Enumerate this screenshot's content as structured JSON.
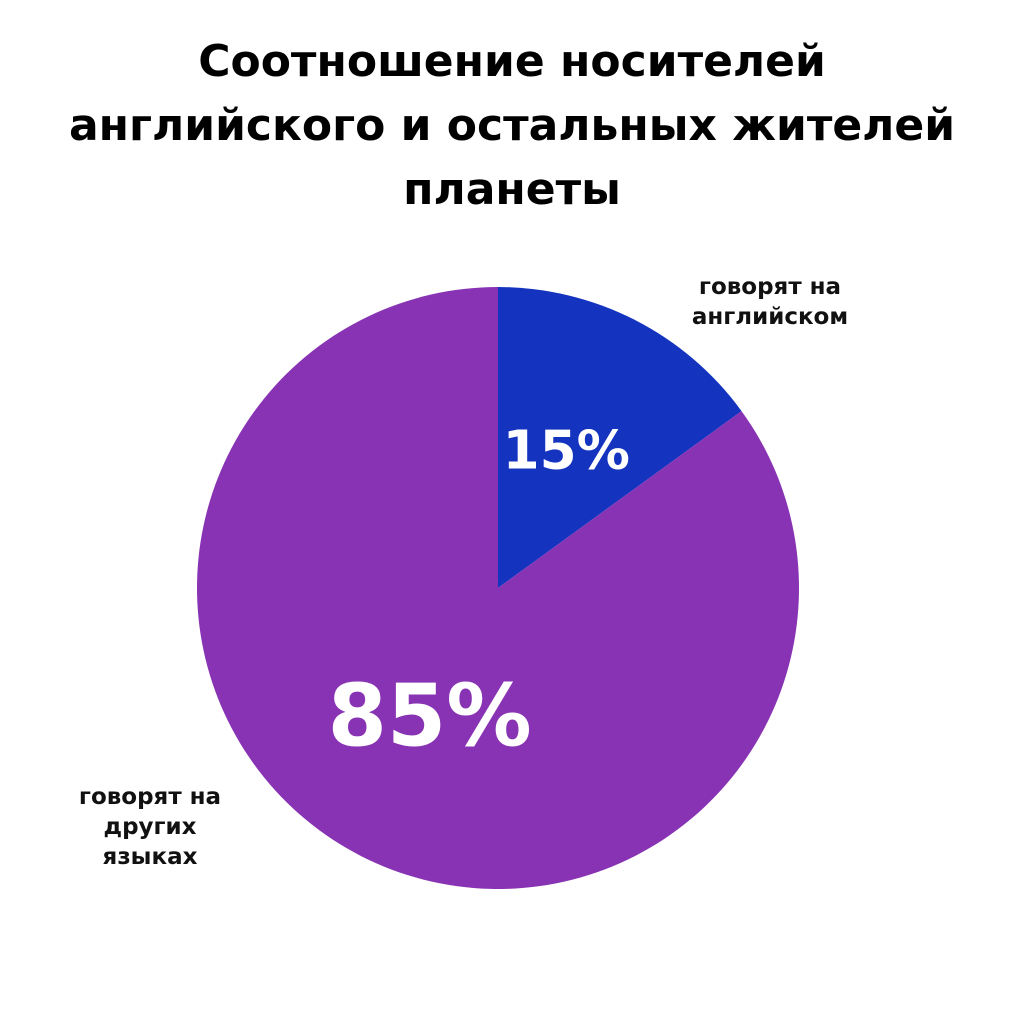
{
  "chart_data": {
    "type": "pie",
    "title": "Соотношение носителей английского и остальных жителей планеты",
    "categories": [
      "говорят на английском",
      "говорят на других языках"
    ],
    "values": [
      15,
      85
    ],
    "value_labels": [
      "15%",
      "85%"
    ],
    "colors": [
      "#1434c0",
      "#8833b3"
    ]
  }
}
